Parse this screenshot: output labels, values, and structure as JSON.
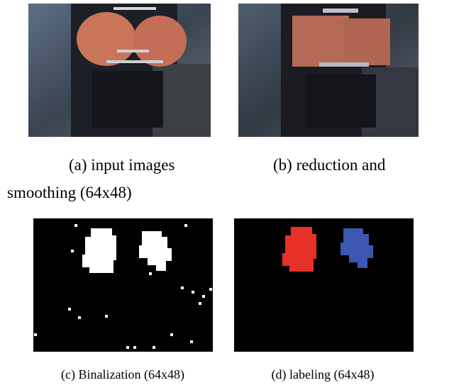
{
  "figures": [
    {
      "caption": "(a) input images"
    },
    {
      "caption_lines": [
        "(b) reduction and",
        "smoothing (64x48)"
      ]
    },
    {
      "caption": "(c) Binalization (64x48)"
    },
    {
      "caption": "(d) labeling (64x48)"
    }
  ]
}
